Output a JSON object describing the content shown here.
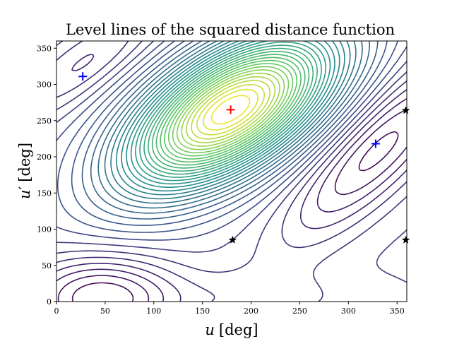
{
  "chart_data": {
    "type": "contour",
    "title": "Level lines of the squared distance function",
    "xlabel_var": "u",
    "xlabel_unit": "[deg]",
    "ylabel_var": "u",
    "ylabel_prime": "′",
    "ylabel_unit": "[deg]",
    "xlim": [
      0,
      360
    ],
    "ylim": [
      0,
      360
    ],
    "xticks": [
      "0",
      "50",
      "100",
      "150",
      "200",
      "250",
      "300",
      "350"
    ],
    "yticks": [
      "0",
      "50",
      "100",
      "150",
      "200",
      "250",
      "300",
      "350"
    ],
    "grid": false,
    "colormap": [
      "#440154",
      "#3b528b",
      "#21918c",
      "#5ec962",
      "#fde725"
    ],
    "level_count": 36,
    "markers": [
      {
        "kind": "plus",
        "color": "#ff0000",
        "x": 179,
        "y": 265
      },
      {
        "kind": "plus",
        "color": "#0000ff",
        "x": 27,
        "y": 311
      },
      {
        "kind": "plus",
        "color": "#0000ff",
        "x": 328,
        "y": 218
      },
      {
        "kind": "star",
        "color": "#000000",
        "x": 181,
        "y": 85
      },
      {
        "kind": "star",
        "color": "#000000",
        "x": 359,
        "y": 264
      },
      {
        "kind": "star",
        "color": "#000000",
        "x": 359,
        "y": 85
      }
    ]
  }
}
